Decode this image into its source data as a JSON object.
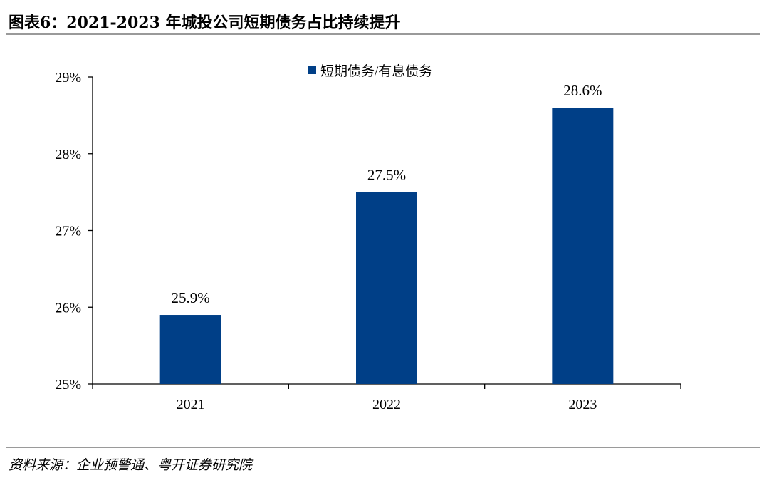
{
  "figure": {
    "title": "图表6：2021-2023 年城投公司短期债务占比持续提升",
    "source": "资料来源：企业预警通、粤开证券研究院"
  },
  "colors": {
    "bar": "#003F87",
    "axis": "#000000",
    "rule": "#9a9a9a"
  },
  "chart_data": {
    "type": "bar",
    "categories": [
      "2021",
      "2022",
      "2023"
    ],
    "series": [
      {
        "name": "短期债务/有息债务",
        "values": [
          25.9,
          27.5,
          28.6
        ],
        "labels": [
          "25.9%",
          "27.5%",
          "28.6%"
        ]
      }
    ],
    "ylim": [
      25,
      29
    ],
    "yticks": [
      25,
      26,
      27,
      28,
      29
    ],
    "ytick_labels": [
      "25%",
      "26%",
      "27%",
      "28%",
      "29%"
    ],
    "grid": false,
    "legend": "top-center"
  }
}
